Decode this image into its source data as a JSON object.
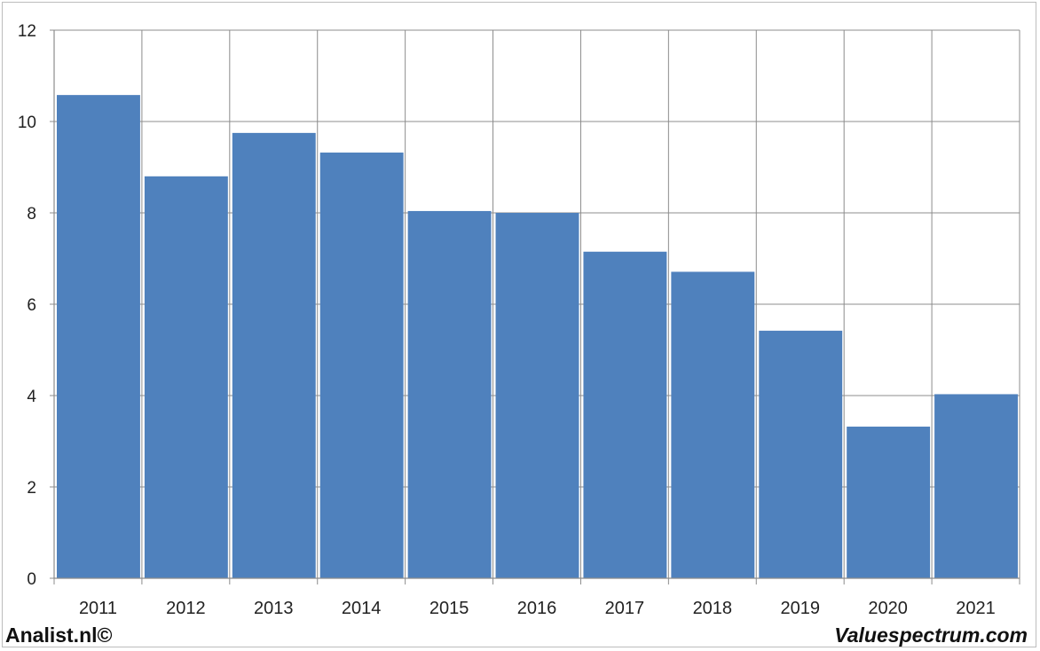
{
  "chart_data": {
    "type": "bar",
    "categories": [
      "2011",
      "2012",
      "2013",
      "2014",
      "2015",
      "2016",
      "2017",
      "2018",
      "2019",
      "2020",
      "2021"
    ],
    "values": [
      10.58,
      8.8,
      9.75,
      9.32,
      8.04,
      8.0,
      7.15,
      6.71,
      5.42,
      3.32,
      4.03
    ],
    "title": "",
    "xlabel": "",
    "ylabel": "",
    "ylim": [
      0,
      12
    ],
    "yticks": [
      "0",
      "2",
      "4",
      "6",
      "8",
      "10",
      "12"
    ],
    "grid": true,
    "bar_color": "#4f81bd"
  },
  "footer": {
    "left": "Analist.nl©",
    "right": "Valuespectrum.com"
  }
}
